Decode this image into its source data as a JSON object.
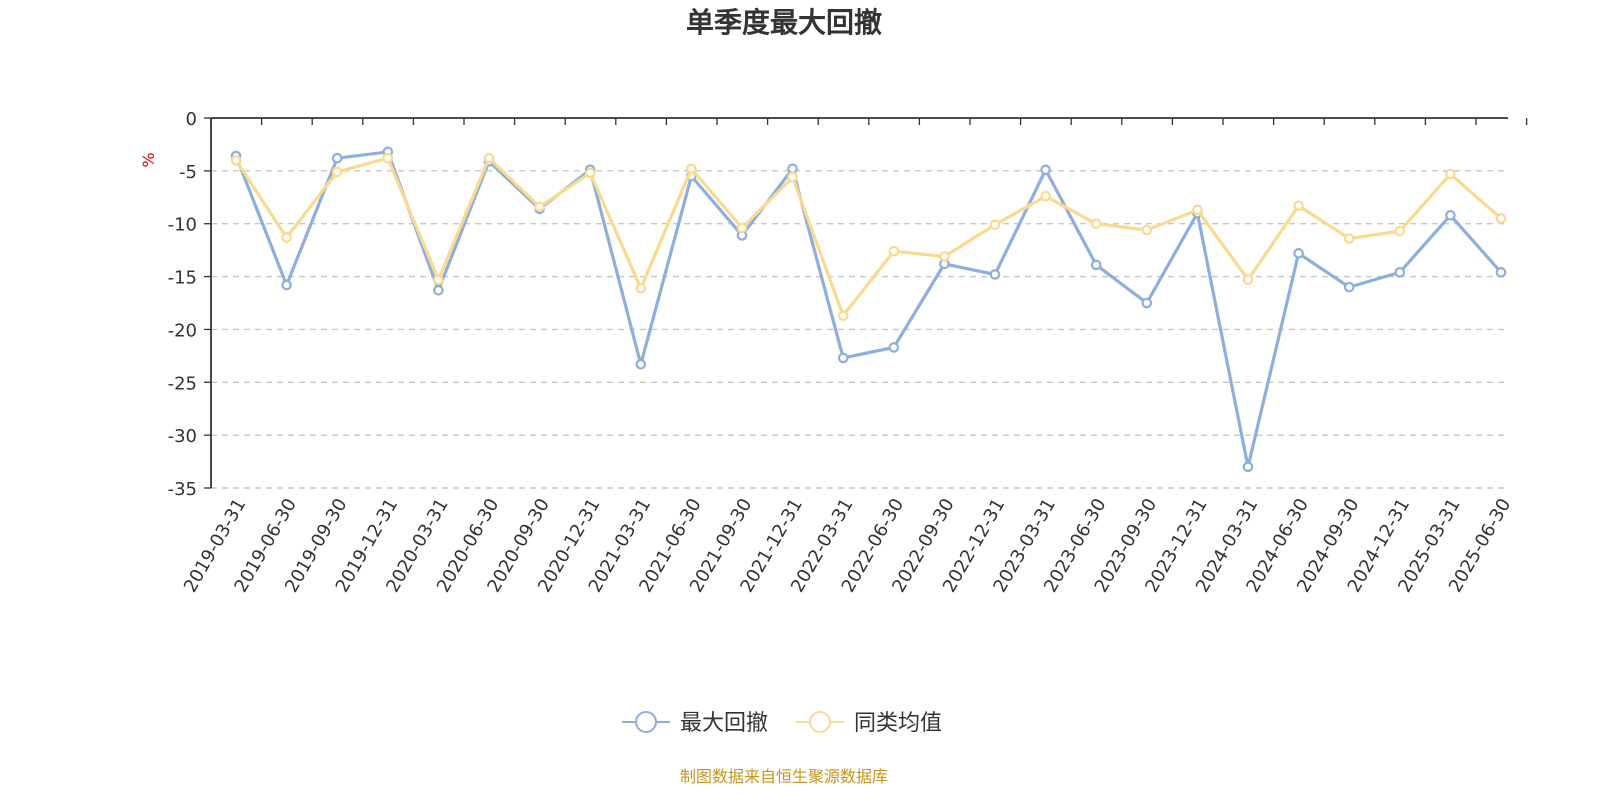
{
  "colors": {
    "series_1": "#8eaedb",
    "series_2": "#fbd98f",
    "axis": "#333333",
    "grid": "#c8c8c8",
    "unit": "#e60000",
    "source": "#c8961c"
  },
  "chart_data": {
    "type": "line",
    "title": "单季度最大回撤",
    "xlabel": "",
    "ylabel": "%",
    "ylim": [
      -35,
      0
    ],
    "yticks": [
      0,
      -5,
      -10,
      -15,
      -20,
      -25,
      -30,
      -35
    ],
    "ytick_labels": [
      "0",
      "-5",
      "-10",
      "-15",
      "-20",
      "-25",
      "-30",
      "-35"
    ],
    "grid": true,
    "legend_position": "bottom-center",
    "categories": [
      "2019-03-31",
      "2019-06-30",
      "2019-09-30",
      "2019-12-31",
      "2020-03-31",
      "2020-06-30",
      "2020-09-30",
      "2020-12-31",
      "2021-03-31",
      "2021-06-30",
      "2021-09-30",
      "2021-12-31",
      "2022-03-31",
      "2022-06-30",
      "2022-09-30",
      "2022-12-31",
      "2023-03-31",
      "2023-06-30",
      "2023-09-30",
      "2023-12-31",
      "2024-03-31",
      "2024-06-30",
      "2024-09-30",
      "2024-12-31",
      "2025-03-31",
      "2025-06-30"
    ],
    "series": [
      {
        "name": "最大回撤",
        "values": [
          -3.6,
          -15.8,
          -3.8,
          -3.2,
          -16.3,
          -4.1,
          -8.6,
          -4.9,
          -23.3,
          -5.5,
          -11.1,
          -4.8,
          -22.7,
          -21.7,
          -13.8,
          -14.8,
          -4.9,
          -13.9,
          -17.5,
          -9.0,
          -33.0,
          -12.8,
          -16.0,
          -14.6,
          -9.2,
          -14.6
        ]
      },
      {
        "name": "同类均值",
        "values": [
          -4.0,
          -11.3,
          -5.1,
          -3.8,
          -15.3,
          -3.8,
          -8.4,
          -5.2,
          -16.1,
          -4.8,
          -10.4,
          -5.6,
          -18.7,
          -12.6,
          -13.1,
          -10.1,
          -7.4,
          -10.0,
          -10.6,
          -8.7,
          -15.3,
          -8.3,
          -11.4,
          -10.7,
          -5.3,
          -9.5
        ]
      }
    ],
    "source_note": "制图数据来自恒生聚源数据库"
  }
}
